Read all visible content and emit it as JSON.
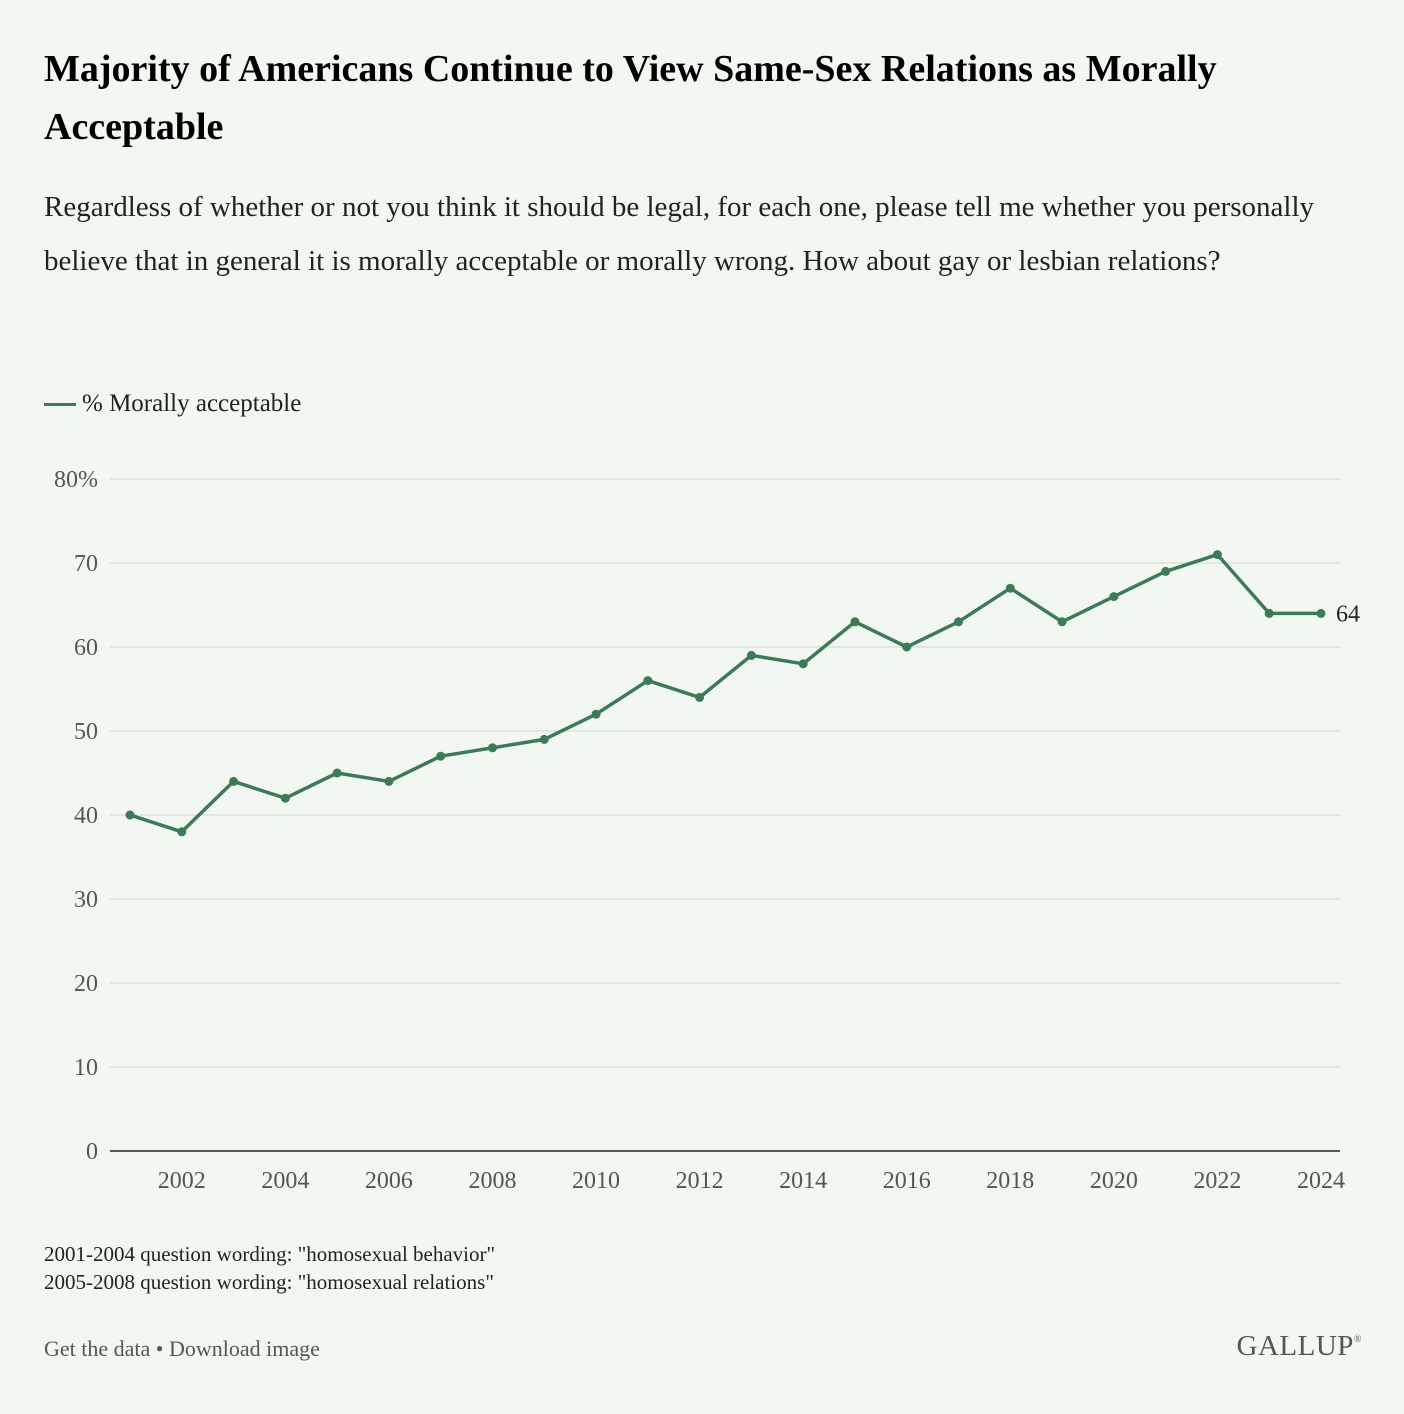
{
  "header": {
    "title": "Majority of Americans Continue to View Same-Sex Relations as Morally Acceptable",
    "subtitle": "Regardless of whether or not you think it should be legal, for each one, please tell me whether you personally believe that in general it is morally acceptable or morally wrong. How about gay or lesbian relations?"
  },
  "colors": {
    "line": "#3d7a56",
    "grid": "#d9e2da",
    "axis": "#222222",
    "background": "#f3f7f2"
  },
  "chart_data": {
    "type": "line",
    "title": "Majority of Americans Continue to View Same-Sex Relations as Morally Acceptable",
    "xlabel": "",
    "ylabel": "",
    "xlim": [
      2001,
      2024
    ],
    "ylim": [
      0,
      80
    ],
    "y_ticks": [
      0,
      10,
      20,
      30,
      40,
      50,
      60,
      70,
      80
    ],
    "y_tick_labels": [
      "0",
      "10",
      "20",
      "30",
      "40",
      "50",
      "60",
      "70",
      "80%"
    ],
    "x_ticks": [
      2002,
      2004,
      2006,
      2008,
      2010,
      2012,
      2014,
      2016,
      2018,
      2020,
      2022,
      2024
    ],
    "x_tick_labels": [
      "2002",
      "2004",
      "2006",
      "2008",
      "2010",
      "2012",
      "2014",
      "2016",
      "2018",
      "2020",
      "2022",
      "2024"
    ],
    "grid": true,
    "legend_position": "top-left",
    "series": [
      {
        "name": "% Morally acceptable",
        "x": [
          2001,
          2002,
          2003,
          2004,
          2005,
          2006,
          2007,
          2008,
          2009,
          2010,
          2011,
          2012,
          2013,
          2014,
          2015,
          2016,
          2017,
          2018,
          2019,
          2020,
          2021,
          2022,
          2023,
          2024
        ],
        "values": [
          40,
          38,
          44,
          42,
          45,
          44,
          47,
          48,
          49,
          52,
          56,
          54,
          59,
          58,
          63,
          60,
          63,
          67,
          63,
          66,
          69,
          71,
          64,
          64
        ],
        "end_label": "64"
      }
    ]
  },
  "notes": {
    "line1": "2001-2004 question wording: \"homosexual behavior\"",
    "line2": "2005-2008 question wording: \"homosexual relations\""
  },
  "footer": {
    "get_data": "Get the data",
    "separator": " • ",
    "download": "Download image",
    "brand": "GALLUP",
    "brand_mark": "®"
  }
}
